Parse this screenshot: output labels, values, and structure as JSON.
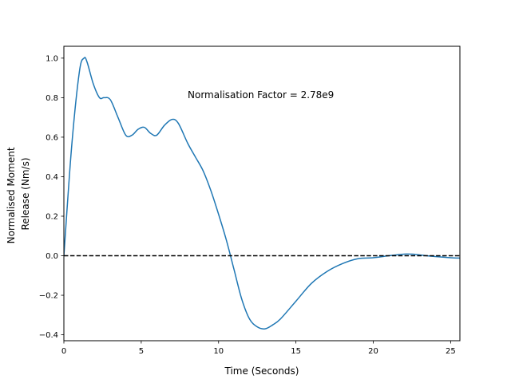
{
  "chart_data": {
    "type": "line",
    "title": "",
    "xlabel": "Time (Seconds)",
    "ylabel_lines": [
      "Normalised Moment",
      "Release (Nm/s)"
    ],
    "annotation": "Normalisation Factor = 2.78e9",
    "xlim": [
      0,
      25.6
    ],
    "ylim": [
      -0.43,
      1.06
    ],
    "xticks": [
      0,
      5,
      10,
      15,
      20,
      25
    ],
    "yticks": [
      -0.4,
      -0.2,
      0.0,
      0.2,
      0.4,
      0.6,
      0.8,
      1.0
    ],
    "xtick_labels": [
      "0",
      "5",
      "10",
      "15",
      "20",
      "25"
    ],
    "ytick_labels": [
      "−0.4",
      "−0.2",
      "0.0",
      "0.2",
      "0.4",
      "0.6",
      "0.8",
      "1.0"
    ],
    "grid": false,
    "series": [
      {
        "color": "#1f77b4",
        "style": "solid",
        "x": [
          0,
          0.5,
          1.0,
          1.3,
          1.5,
          1.9,
          2.3,
          2.6,
          3.0,
          3.5,
          4.0,
          4.4,
          4.8,
          5.2,
          5.6,
          6.0,
          6.5,
          7.0,
          7.4,
          8.0,
          8.5,
          9.0,
          9.5,
          10.0,
          10.5,
          11.0,
          11.5,
          12.0,
          12.5,
          13.0,
          13.5,
          14.0,
          15.0,
          16.0,
          17.0,
          18.0,
          19.0,
          20.0,
          21.0,
          22.0,
          22.5,
          23.0,
          24.0,
          25.0,
          25.6
        ],
        "y": [
          0.0,
          0.55,
          0.93,
          1.0,
          0.98,
          0.87,
          0.8,
          0.8,
          0.79,
          0.7,
          0.61,
          0.61,
          0.64,
          0.65,
          0.62,
          0.61,
          0.66,
          0.69,
          0.67,
          0.57,
          0.5,
          0.43,
          0.33,
          0.21,
          0.08,
          -0.07,
          -0.22,
          -0.32,
          -0.36,
          -0.37,
          -0.35,
          -0.32,
          -0.23,
          -0.14,
          -0.08,
          -0.04,
          -0.015,
          -0.01,
          0.0,
          0.008,
          0.008,
          0.004,
          -0.004,
          -0.01,
          -0.012
        ]
      },
      {
        "color": "#000000",
        "style": "dashed",
        "x": [
          0,
          25.6
        ],
        "y": [
          0,
          0
        ]
      }
    ]
  }
}
